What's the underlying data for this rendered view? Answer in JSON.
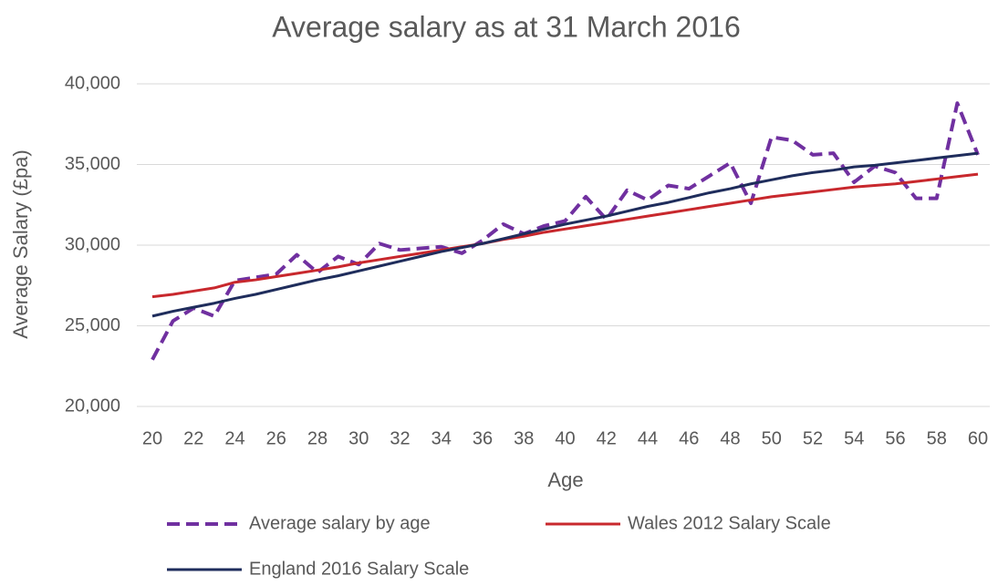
{
  "chart_data": {
    "type": "line",
    "title": "Average salary as at 31 March 2016",
    "x_label": "Age",
    "y_label": "Average Salary (£pa)",
    "x": [
      20,
      21,
      22,
      23,
      24,
      25,
      26,
      27,
      28,
      29,
      30,
      31,
      32,
      33,
      34,
      35,
      36,
      37,
      38,
      39,
      40,
      41,
      42,
      43,
      44,
      45,
      46,
      47,
      48,
      49,
      50,
      51,
      52,
      53,
      54,
      55,
      56,
      57,
      58,
      59,
      60
    ],
    "xlim": [
      20,
      60
    ],
    "xticks": [
      20,
      22,
      24,
      26,
      28,
      30,
      32,
      34,
      36,
      38,
      40,
      42,
      44,
      46,
      48,
      50,
      52,
      54,
      56,
      58,
      60
    ],
    "ylim": [
      20000,
      40000
    ],
    "yticks": [
      {
        "value": 20000,
        "label": "20,000"
      },
      {
        "value": 25000,
        "label": "25,000"
      },
      {
        "value": 30000,
        "label": "30,000"
      },
      {
        "value": 35000,
        "label": "35,000"
      },
      {
        "value": 40000,
        "label": "40,000"
      }
    ],
    "grid": true,
    "legend": "bottom",
    "series": [
      {
        "name": "Average salary by age",
        "color": "#7030a0",
        "dashed": true,
        "values": [
          22900,
          25300,
          26100,
          25600,
          27800,
          28000,
          28200,
          29400,
          28300,
          29300,
          28800,
          30100,
          29700,
          29800,
          29900,
          29500,
          30300,
          31300,
          30700,
          31200,
          31500,
          33000,
          31600,
          33400,
          32800,
          33700,
          33500,
          34300,
          35100,
          32600,
          36700,
          36500,
          35600,
          35700,
          33900,
          34900,
          34500,
          32900,
          32900,
          38800,
          35600
        ]
      },
      {
        "name": "Wales 2012 Salary Scale",
        "color": "#c8282d",
        "values": [
          26800,
          26950,
          27150,
          27350,
          27700,
          27850,
          28050,
          28250,
          28450,
          28650,
          28900,
          29100,
          29300,
          29500,
          29700,
          29900,
          30100,
          30350,
          30550,
          30800,
          31000,
          31200,
          31400,
          31600,
          31800,
          32000,
          32200,
          32400,
          32600,
          32800,
          33000,
          33150,
          33300,
          33450,
          33600,
          33700,
          33800,
          33950,
          34100,
          34250,
          34400
        ]
      },
      {
        "name": "England 2016 Salary Scale",
        "color": "#1f2d5c",
        "values": [
          25600,
          25900,
          26150,
          26400,
          26700,
          26950,
          27250,
          27550,
          27850,
          28100,
          28400,
          28700,
          29000,
          29300,
          29600,
          29850,
          30100,
          30400,
          30700,
          31000,
          31300,
          31550,
          31800,
          32100,
          32400,
          32650,
          32950,
          33250,
          33500,
          33800,
          34050,
          34300,
          34500,
          34650,
          34850,
          34950,
          35100,
          35250,
          35400,
          35550,
          35700
        ]
      }
    ]
  }
}
